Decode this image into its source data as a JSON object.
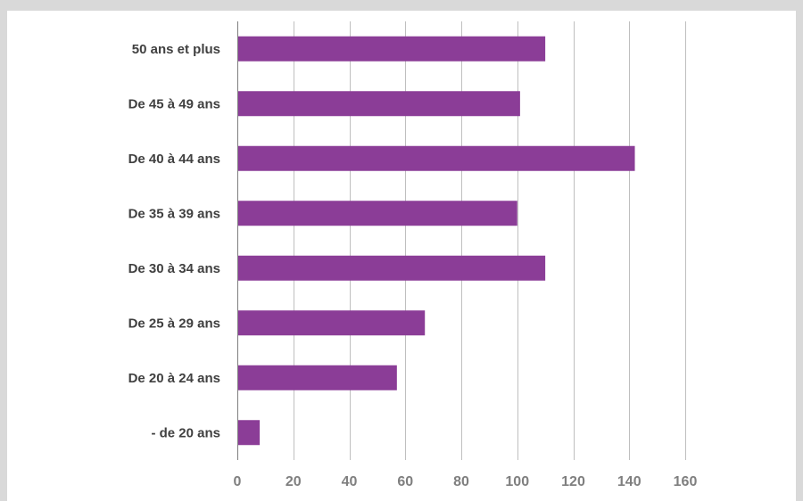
{
  "chart_data": {
    "type": "bar",
    "orientation": "horizontal",
    "categories": [
      "- de 20 ans",
      "De 20 à 24 ans",
      "De 25 à 29 ans",
      "De 30 à 34 ans",
      "De 35 à 39 ans",
      "De 40 à 44 ans",
      "De 45 à 49 ans",
      "50 ans et plus"
    ],
    "values": [
      8,
      57,
      67,
      110,
      100,
      142,
      101,
      110
    ],
    "title": "",
    "xlabel": "",
    "ylabel": "",
    "xlim": [
      0,
      160
    ],
    "xticks": [
      "0",
      "20",
      "40",
      "60",
      "80",
      "100",
      "120",
      "140",
      "160"
    ],
    "grid": "vertical",
    "legend": "none",
    "colors": {
      "bar": "#8b3d97",
      "grid": "#bfbfbf",
      "axis": "#7f7f7f",
      "category_text": "#404040",
      "tick_text": "#7f7f7f",
      "background": "#ffffff",
      "frame": "#d9d9d9"
    }
  }
}
